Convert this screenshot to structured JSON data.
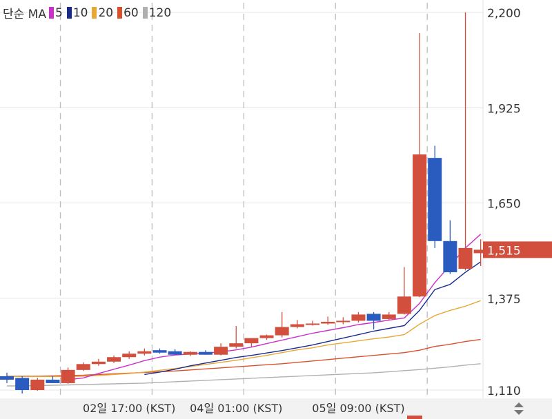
{
  "legend": {
    "prefix": "단순 MA",
    "items": [
      {
        "label": "5",
        "color": "#c832c8"
      },
      {
        "label": "10",
        "color": "#1a2a8c"
      },
      {
        "label": "20",
        "color": "#e8a838"
      },
      {
        "label": "60",
        "color": "#d9502a"
      },
      {
        "label": "120",
        "color": "#b0b0b0"
      }
    ]
  },
  "colors": {
    "up": "#d24f3e",
    "down": "#2a5bbf",
    "grid": "#e6e6e6",
    "vgrid_dashed": "#bdbdbd",
    "price_tag_bg": "#d24f3e"
  },
  "chart_data": {
    "type": "candlestick",
    "y_axis": {
      "ticks": [
        2200,
        1925,
        1650,
        1375,
        1110
      ],
      "ylim": [
        1110,
        2200
      ]
    },
    "x_axis": {
      "tick_labels": [
        {
          "label": "02일 17:00 (KST)",
          "candle_index": 8
        },
        {
          "label": "04일 01:00 (KST)",
          "candle_index": 15
        },
        {
          "label": "05일 09:00 (KST)",
          "candle_index": 23
        }
      ],
      "dashed_separators_at_candle": [
        3.5,
        9.5,
        15.5,
        21.5,
        27.5
      ]
    },
    "current_price": {
      "value": 1515,
      "label": "1,515"
    },
    "candles": [
      {
        "o": 1150,
        "h": 1160,
        "l": 1130,
        "c": 1140
      },
      {
        "o": 1145,
        "h": 1150,
        "l": 1100,
        "c": 1110
      },
      {
        "o": 1110,
        "h": 1145,
        "l": 1108,
        "c": 1140
      },
      {
        "o": 1140,
        "h": 1150,
        "l": 1132,
        "c": 1130
      },
      {
        "o": 1130,
        "h": 1175,
        "l": 1128,
        "c": 1168
      },
      {
        "o": 1168,
        "h": 1190,
        "l": 1165,
        "c": 1185
      },
      {
        "o": 1185,
        "h": 1200,
        "l": 1180,
        "c": 1192
      },
      {
        "o": 1192,
        "h": 1210,
        "l": 1188,
        "c": 1205
      },
      {
        "o": 1205,
        "h": 1222,
        "l": 1200,
        "c": 1215
      },
      {
        "o": 1215,
        "h": 1230,
        "l": 1210,
        "c": 1222
      },
      {
        "o": 1225,
        "h": 1230,
        "l": 1215,
        "c": 1218
      },
      {
        "o": 1222,
        "h": 1228,
        "l": 1215,
        "c": 1212
      },
      {
        "o": 1212,
        "h": 1222,
        "l": 1208,
        "c": 1220
      },
      {
        "o": 1220,
        "h": 1225,
        "l": 1212,
        "c": 1212
      },
      {
        "o": 1212,
        "h": 1245,
        "l": 1210,
        "c": 1235
      },
      {
        "o": 1235,
        "h": 1295,
        "l": 1230,
        "c": 1245
      },
      {
        "o": 1245,
        "h": 1250,
        "l": 1235,
        "c": 1260
      },
      {
        "o": 1260,
        "h": 1270,
        "l": 1255,
        "c": 1268
      },
      {
        "o": 1268,
        "h": 1335,
        "l": 1262,
        "c": 1292
      },
      {
        "o": 1292,
        "h": 1312,
        "l": 1288,
        "c": 1300
      },
      {
        "o": 1300,
        "h": 1310,
        "l": 1296,
        "c": 1302
      },
      {
        "o": 1302,
        "h": 1322,
        "l": 1298,
        "c": 1307
      },
      {
        "o": 1307,
        "h": 1320,
        "l": 1300,
        "c": 1310
      },
      {
        "o": 1310,
        "h": 1335,
        "l": 1305,
        "c": 1328
      },
      {
        "o": 1330,
        "h": 1335,
        "l": 1285,
        "c": 1310
      },
      {
        "o": 1315,
        "h": 1335,
        "l": 1310,
        "c": 1328
      },
      {
        "o": 1330,
        "h": 1465,
        "l": 1328,
        "c": 1380
      },
      {
        "o": 1380,
        "h": 2140,
        "l": 1378,
        "c": 1790
      },
      {
        "o": 1780,
        "h": 1815,
        "l": 1520,
        "c": 1540
      },
      {
        "o": 1540,
        "h": 1600,
        "l": 1445,
        "c": 1450
      },
      {
        "o": 1460,
        "h": 2200,
        "l": 1455,
        "c": 1520
      },
      {
        "o": 1505,
        "h": 1545,
        "l": 1468,
        "c": 1515
      }
    ],
    "moving_averages": {
      "5": [
        null,
        null,
        null,
        null,
        1140,
        1145,
        1158,
        1170,
        1182,
        1195,
        1205,
        1211,
        1214,
        1217,
        1220,
        1226,
        1234,
        1244,
        1254,
        1264,
        1274,
        1282,
        1290,
        1299,
        1305,
        1312,
        1318,
        1360,
        1420,
        1470,
        1520,
        1560
      ],
      "10": [
        null,
        null,
        null,
        null,
        null,
        null,
        null,
        null,
        null,
        1155,
        1162,
        1170,
        1180,
        1188,
        1196,
        1204,
        1210,
        1217,
        1224,
        1232,
        1240,
        1250,
        1260,
        1270,
        1280,
        1288,
        1296,
        1340,
        1400,
        1415,
        1450,
        1480
      ],
      "20": [
        1150,
        1149,
        1149,
        1149,
        1149,
        1150,
        1152,
        1155,
        1158,
        1162,
        1167,
        1172,
        1178,
        1184,
        1190,
        1196,
        1203,
        1210,
        1218,
        1226,
        1232,
        1240,
        1246,
        1252,
        1258,
        1263,
        1270,
        1300,
        1325,
        1340,
        1352,
        1368
      ],
      "60": [
        1150,
        1150,
        1150,
        1151,
        1152,
        1153,
        1155,
        1157,
        1159,
        1161,
        1163,
        1165,
        1168,
        1171,
        1174,
        1177,
        1180,
        1183,
        1186,
        1190,
        1194,
        1198,
        1202,
        1206,
        1210,
        1214,
        1218,
        1225,
        1236,
        1242,
        1250,
        1256
      ],
      "120": [
        1122,
        1122,
        1123,
        1124,
        1125,
        1126,
        1127,
        1128,
        1129,
        1130,
        1132,
        1134,
        1136,
        1138,
        1140,
        1142,
        1144,
        1146,
        1148,
        1150,
        1152,
        1154,
        1156,
        1158,
        1160,
        1163,
        1166,
        1169,
        1173,
        1177,
        1182,
        1186
      ]
    }
  }
}
